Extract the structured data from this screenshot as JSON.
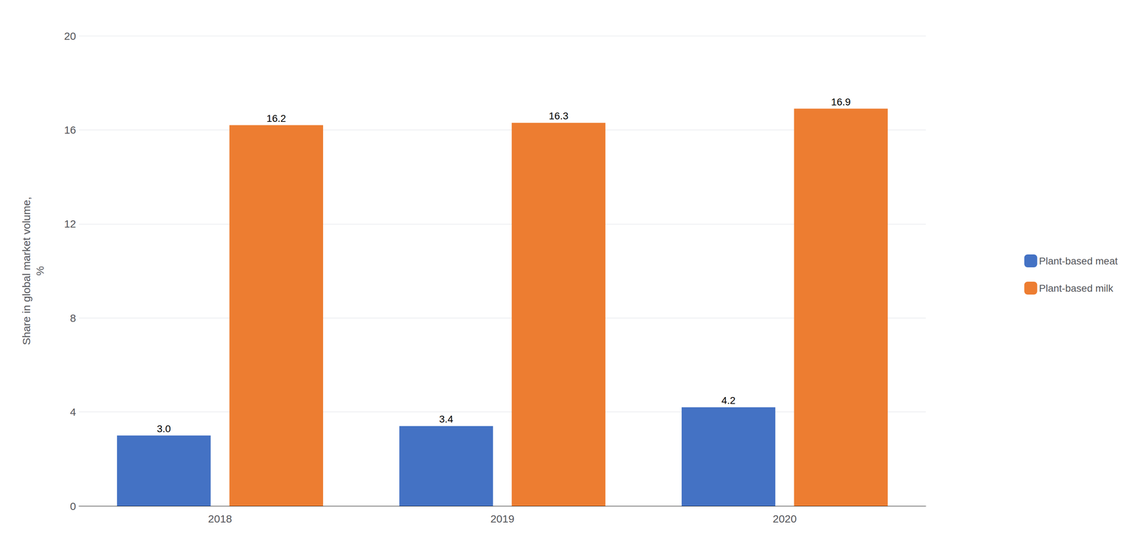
{
  "chart_data": {
    "type": "bar",
    "categories": [
      "2018",
      "2019",
      "2020"
    ],
    "series": [
      {
        "name": "Plant-based meat",
        "color": "#4472C4",
        "values": [
          3.0,
          3.4,
          4.2
        ],
        "value_labels": [
          "3.0",
          "3.4",
          "4.2"
        ]
      },
      {
        "name": "Plant-based milk",
        "color": "#ED7D31",
        "values": [
          16.2,
          16.3,
          16.9
        ],
        "value_labels": [
          "16.2",
          "16.3",
          "16.9"
        ]
      }
    ],
    "ylabel": "Share in global market volume,\n%",
    "ylim": [
      0,
      20
    ],
    "yticks": [
      0,
      4,
      8,
      12,
      16,
      20
    ],
    "grid": true,
    "legend": "right",
    "data_labels": true
  }
}
